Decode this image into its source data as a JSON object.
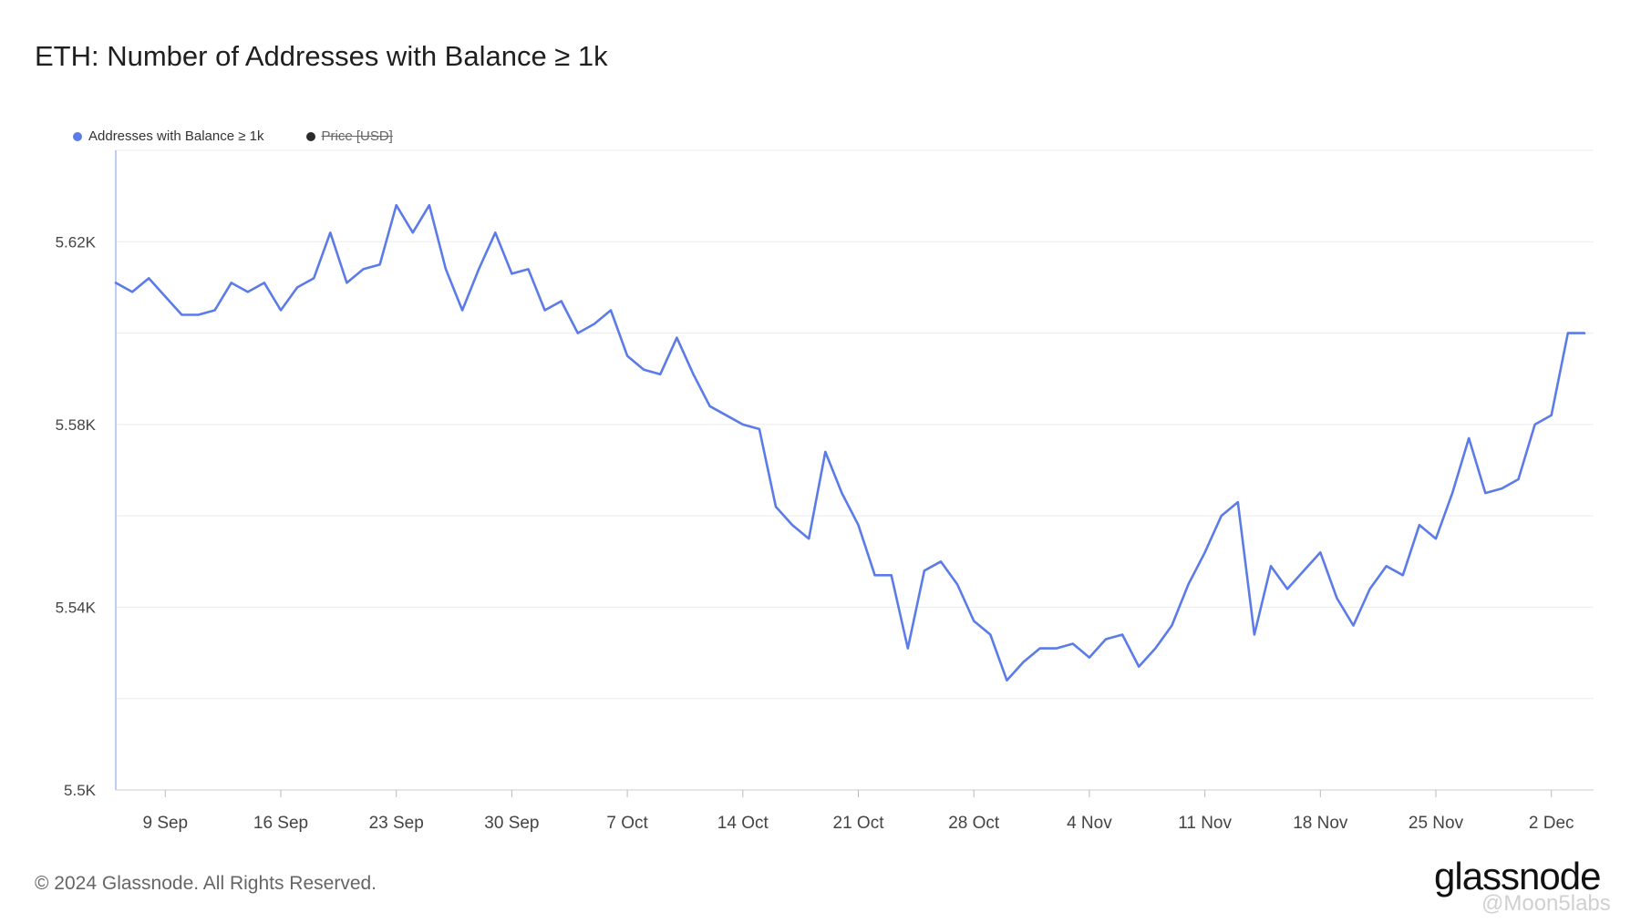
{
  "title": "ETH: Number of Addresses with Balance ≥ 1k",
  "legend": [
    {
      "label": "Addresses with Balance ≥ 1k",
      "color": "#5b7be8",
      "active": true
    },
    {
      "label": "Price [USD]",
      "color": "#2b2b2b",
      "active": false
    }
  ],
  "footer": "© 2024 Glassnode. All Rights Reserved.",
  "logo": "glassnode",
  "watermark": "@Moon5labs",
  "chart_data": {
    "type": "line",
    "title": "ETH: Number of Addresses with Balance ≥ 1k",
    "xlabel": "",
    "ylabel": "",
    "x_start": "2024-09-06",
    "ylim": [
      5500,
      5640
    ],
    "y_ticks": [
      5500,
      5520,
      5540,
      5560,
      5580,
      5600,
      5620
    ],
    "y_tick_labels": [
      "5.5K",
      "",
      "5.54K",
      "",
      "5.58K",
      "",
      "5.62K"
    ],
    "x_ticks": [
      {
        "day": 3,
        "label": "9 Sep"
      },
      {
        "day": 10,
        "label": "16 Sep"
      },
      {
        "day": 17,
        "label": "23 Sep"
      },
      {
        "day": 24,
        "label": "30 Sep"
      },
      {
        "day": 31,
        "label": "7 Oct"
      },
      {
        "day": 38,
        "label": "14 Oct"
      },
      {
        "day": 45,
        "label": "21 Oct"
      },
      {
        "day": 52,
        "label": "28 Oct"
      },
      {
        "day": 59,
        "label": "4 Nov"
      },
      {
        "day": 66,
        "label": "11 Nov"
      },
      {
        "day": 73,
        "label": "18 Nov"
      },
      {
        "day": 80,
        "label": "25 Nov"
      },
      {
        "day": 87,
        "label": "2 Dec"
      }
    ],
    "grid": true,
    "legend_position": "top-left",
    "series": [
      {
        "name": "Addresses with Balance ≥ 1k",
        "color": "#5b7be8",
        "values": [
          5611,
          5609,
          5612,
          5608,
          5604,
          5604,
          5605,
          5611,
          5609,
          5611,
          5605,
          5610,
          5612,
          5622,
          5611,
          5614,
          5615,
          5628,
          5622,
          5628,
          5614,
          5605,
          5614,
          5622,
          5613,
          5614,
          5605,
          5607,
          5600,
          5602,
          5605,
          5595,
          5592,
          5591,
          5599,
          5591,
          5584,
          5582,
          5580,
          5579,
          5562,
          5558,
          5555,
          5574,
          5565,
          5558,
          5547,
          5547,
          5531,
          5548,
          5550,
          5545,
          5537,
          5534,
          5524,
          5528,
          5531,
          5531,
          5532,
          5529,
          5533,
          5534,
          5527,
          5531,
          5536,
          5545,
          5552,
          5560,
          5563,
          5534,
          5549,
          5544,
          5548,
          5552,
          5542,
          5536,
          5544,
          5549,
          5547,
          5558,
          5555,
          5565,
          5577,
          5565,
          5566,
          5568,
          5580,
          5582,
          5600,
          5600
        ]
      }
    ]
  }
}
